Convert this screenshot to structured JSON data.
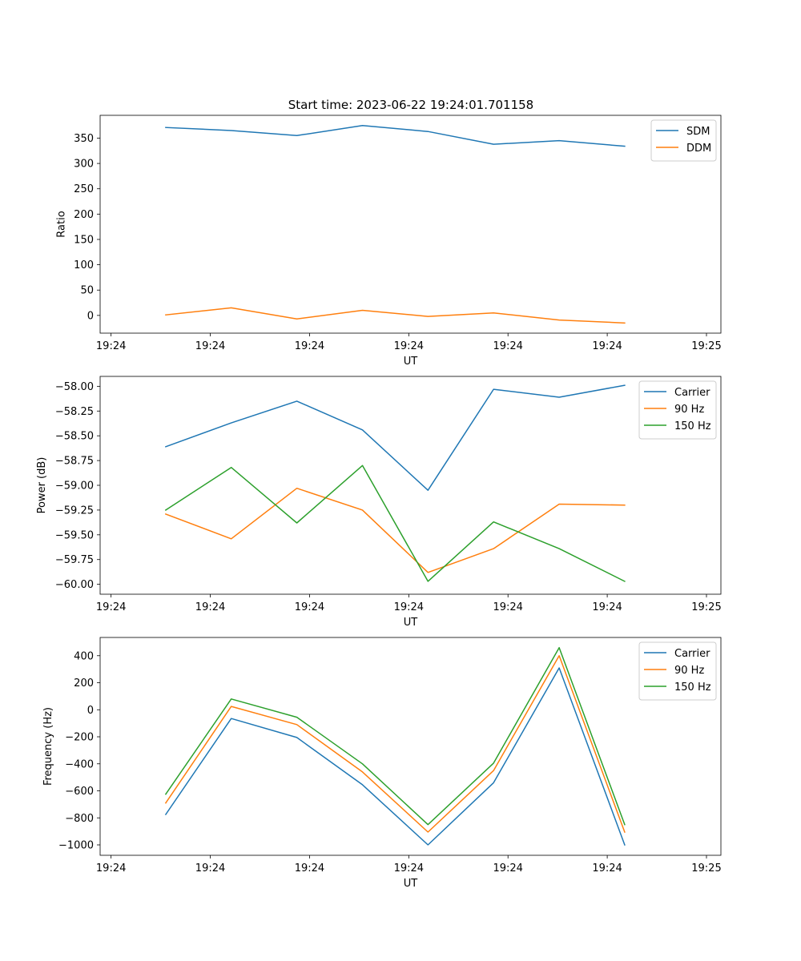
{
  "figure_title": "Start time: 2023-06-22 19:24:01.701158",
  "chart_data": [
    {
      "type": "line",
      "title": "Start time: 2023-06-22 19:24:01.701158",
      "xlabel": "UT",
      "ylabel": "Ratio",
      "x_ticks": [
        "19:24",
        "19:24",
        "19:24",
        "19:24",
        "19:24",
        "19:24",
        "19:25"
      ],
      "y_ticks": [
        "0",
        "50",
        "100",
        "150",
        "200",
        "250",
        "300",
        "350"
      ],
      "y_tick_values": [
        0,
        50,
        100,
        150,
        200,
        250,
        300,
        350
      ],
      "ylim": [
        -35,
        395
      ],
      "x": [
        1.25,
        2.0,
        2.75,
        3.5,
        4.25,
        5.0,
        5.75,
        6.5
      ],
      "xlim": [
        0.5,
        7.6
      ],
      "x_tick_values": [
        0.625,
        1.76,
        2.895,
        4.03,
        5.165,
        6.3,
        7.435
      ],
      "legend": "top-right",
      "series": [
        {
          "name": "SDM",
          "color": "#1f77b4",
          "values": [
            371,
            365,
            355,
            375,
            363,
            338,
            345,
            334
          ]
        },
        {
          "name": "DDM",
          "color": "#ff7f0e",
          "values": [
            1,
            15,
            -7,
            10,
            -2,
            5,
            -9,
            -15
          ]
        }
      ]
    },
    {
      "type": "line",
      "xlabel": "UT",
      "ylabel": "Power (dB)",
      "x_ticks": [
        "19:24",
        "19:24",
        "19:24",
        "19:24",
        "19:24",
        "19:24",
        "19:25"
      ],
      "y_ticks": [
        "−60.00",
        "−59.75",
        "−59.50",
        "−59.25",
        "−59.00",
        "−58.75",
        "−58.50",
        "−58.25",
        "−58.00"
      ],
      "y_tick_values": [
        -60.0,
        -59.75,
        -59.5,
        -59.25,
        -59.0,
        -58.75,
        -58.5,
        -58.25,
        -58.0
      ],
      "ylim": [
        -60.1,
        -57.9
      ],
      "x": [
        1.25,
        2.0,
        2.75,
        3.5,
        4.25,
        5.0,
        5.75,
        6.5
      ],
      "xlim": [
        0.5,
        7.6
      ],
      "x_tick_values": [
        0.625,
        1.76,
        2.895,
        4.03,
        5.165,
        6.3,
        7.435
      ],
      "legend": "top-right",
      "series": [
        {
          "name": "Carrier",
          "color": "#1f77b4",
          "values": [
            -58.61,
            -58.37,
            -58.15,
            -58.44,
            -59.05,
            -58.03,
            -58.11,
            -57.99
          ]
        },
        {
          "name": "90 Hz",
          "color": "#ff7f0e",
          "values": [
            -59.29,
            -59.54,
            -59.03,
            -59.25,
            -59.88,
            -59.64,
            -59.19,
            -59.2
          ]
        },
        {
          "name": "150 Hz",
          "color": "#2ca02c",
          "values": [
            -59.25,
            -58.82,
            -59.38,
            -58.8,
            -59.97,
            -59.37,
            -59.64,
            -59.97
          ]
        }
      ]
    },
    {
      "type": "line",
      "xlabel": "UT",
      "ylabel": "Frequency (Hz)",
      "x_ticks": [
        "19:24",
        "19:24",
        "19:24",
        "19:24",
        "19:24",
        "19:24",
        "19:25"
      ],
      "y_ticks": [
        "−1000",
        "−800",
        "−600",
        "−400",
        "−200",
        "0",
        "200",
        "400"
      ],
      "y_tick_values": [
        -1000,
        -800,
        -600,
        -400,
        -200,
        0,
        200,
        400
      ],
      "ylim": [
        -1077,
        535
      ],
      "x": [
        1.25,
        2.0,
        2.75,
        3.5,
        4.25,
        5.0,
        5.75,
        6.5
      ],
      "xlim": [
        0.5,
        7.6
      ],
      "x_tick_values": [
        0.625,
        1.76,
        2.895,
        4.03,
        5.165,
        6.3,
        7.435
      ],
      "legend": "top-right",
      "series": [
        {
          "name": "Carrier",
          "color": "#1f77b4",
          "values": [
            -775,
            -65,
            -205,
            -555,
            -1000,
            -540,
            310,
            -1000
          ]
        },
        {
          "name": "90 Hz",
          "color": "#ff7f0e",
          "values": [
            -690,
            25,
            -110,
            -460,
            -905,
            -450,
            400,
            -905
          ]
        },
        {
          "name": "150 Hz",
          "color": "#2ca02c",
          "values": [
            -625,
            80,
            -55,
            -400,
            -850,
            -395,
            460,
            -850
          ]
        }
      ]
    }
  ]
}
